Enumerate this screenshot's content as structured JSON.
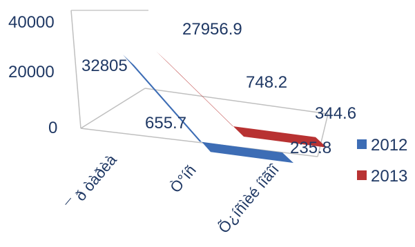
{
  "chart_data": {
    "type": "line",
    "categories": [
      "¯ ð òàðèà",
      "Ò°íñ",
      "Õ¿íñìèé íîãîî"
    ],
    "series": [
      {
        "name": "2012",
        "values": [
          32805,
          655.7,
          235.8
        ],
        "labels": [
          "32805",
          "655.7",
          "235.8"
        ],
        "color": "#3d6db5"
      },
      {
        "name": "2013",
        "values": [
          27956.9,
          748.2,
          344.6
        ],
        "labels": [
          "27956.9",
          "748.2",
          "344.6"
        ],
        "color": "#b83232"
      }
    ],
    "y_ticks": [
      "0",
      "20000",
      "40000"
    ],
    "ylim": [
      0,
      40000
    ],
    "gridlines": true,
    "legend_position": "right",
    "style": "3d"
  }
}
